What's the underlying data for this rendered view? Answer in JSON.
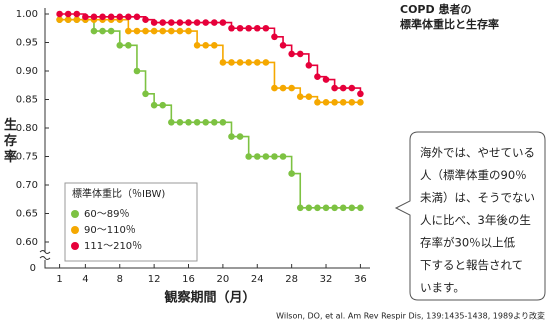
{
  "chart_data": {
    "type": "step",
    "title_lines": [
      "COPD 患者の",
      "標準体重比と生存率"
    ],
    "y_label": "生存率",
    "x_label": "観察期間（月）",
    "y_origin_label": "0",
    "legend_title": "標準体重比（％IBW)",
    "source": "Wilson, DO, et al. Am Rev Respir Dis, 139:1435-1438, 1989より改変",
    "annotation_lines": [
      "海外では、やせている",
      "人（標準体重の90％",
      "未満）は、そうでない",
      "人に比べ、3年後の生",
      "存率が30％以上低",
      "下すると報告されて",
      "います。"
    ],
    "x": [
      1,
      2,
      3,
      4,
      5,
      6,
      7,
      8,
      9,
      10,
      11,
      12,
      13,
      14,
      15,
      16,
      17,
      18,
      19,
      20,
      21,
      22,
      23,
      24,
      25,
      26,
      27,
      28,
      29,
      30,
      31,
      32,
      33,
      34,
      35,
      36
    ],
    "xlim": [
      0,
      37
    ],
    "xticks": [
      1,
      4,
      8,
      12,
      16,
      20,
      24,
      28,
      32,
      36
    ],
    "ylim": [
      0.6,
      1.0
    ],
    "yticks": [
      {
        "value": 0.6,
        "label": "0.60"
      },
      {
        "value": 0.65,
        "label": "0.65"
      },
      {
        "value": 0.7,
        "label": "0.70"
      },
      {
        "value": 0.75,
        "label": "0.75"
      },
      {
        "value": 0.8,
        "label": "0.80"
      },
      {
        "value": 0.85,
        "label": "0.85"
      },
      {
        "value": 0.9,
        "label": "0.90"
      },
      {
        "value": 0.95,
        "label": "0.95"
      },
      {
        "value": 1.0,
        "label": "1.00"
      }
    ],
    "series": [
      {
        "name": "60～89％",
        "color": "#7dc242",
        "values": [
          0.99,
          0.99,
          0.99,
          0.99,
          0.97,
          0.97,
          0.97,
          0.945,
          0.945,
          0.9,
          0.86,
          0.84,
          0.84,
          0.81,
          0.81,
          0.81,
          0.81,
          0.81,
          0.81,
          0.81,
          0.785,
          0.785,
          0.75,
          0.75,
          0.75,
          0.75,
          0.75,
          0.72,
          0.66,
          0.66,
          0.66,
          0.66,
          0.66,
          0.66,
          0.66,
          0.66
        ]
      },
      {
        "name": "90～110％",
        "color": "#f5a800",
        "values": [
          0.99,
          0.99,
          0.99,
          0.99,
          0.99,
          0.99,
          0.99,
          0.99,
          0.97,
          0.97,
          0.97,
          0.97,
          0.97,
          0.97,
          0.97,
          0.97,
          0.945,
          0.945,
          0.945,
          0.915,
          0.915,
          0.915,
          0.915,
          0.915,
          0.915,
          0.87,
          0.87,
          0.87,
          0.855,
          0.855,
          0.845,
          0.845,
          0.845,
          0.845,
          0.845,
          0.845
        ]
      },
      {
        "name": "111～210％",
        "color": "#e6003a",
        "values": [
          1.0,
          1.0,
          1.0,
          0.995,
          0.995,
          0.995,
          0.995,
          0.995,
          0.995,
          0.995,
          0.99,
          0.985,
          0.985,
          0.985,
          0.985,
          0.985,
          0.985,
          0.985,
          0.985,
          0.985,
          0.975,
          0.975,
          0.975,
          0.975,
          0.975,
          0.96,
          0.945,
          0.93,
          0.93,
          0.91,
          0.89,
          0.885,
          0.87,
          0.87,
          0.87,
          0.86
        ]
      }
    ]
  }
}
